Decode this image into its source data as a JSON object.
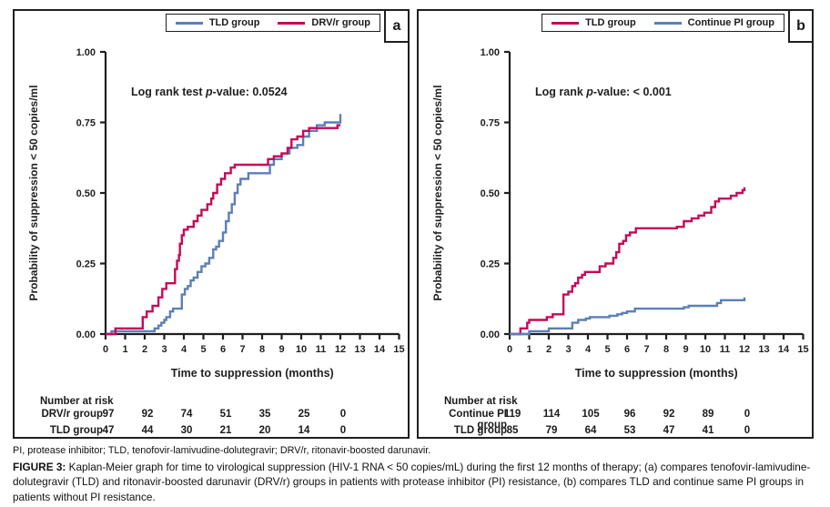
{
  "figure": {
    "footnote": "PI, protease inhibitor; TLD, tenofovir-lamivudine-dolutegravir; DRV/r, ritonavir-boosted darunavir.",
    "caption_label": "FIGURE 3:",
    "caption_text": " Kaplan-Meier graph for time to virological suppression (HIV-1 RNA < 50 copies/mL) during the first 12 months of therapy; (a) compares tenofovir-lamivudine-dolutegravir (TLD) and ritonavir-boosted darunavir (DRV/r) groups in patients with protease inhibitor (PI) resistance, (b) compares TLD and continue same PI groups in patients without PI resistance."
  },
  "colors": {
    "blue": "#5c7fb6",
    "red": "#c40a59",
    "axis": "#1f1f1f"
  },
  "chart_data": [
    {
      "type": "line",
      "subtype": "kaplan-meier-step",
      "panel_label": "a",
      "annotation": "Log rank test p-value: 0.0524",
      "xlabel": "Time to suppression (months)",
      "ylabel": "Probability of suppression < 50 copies/ml",
      "xlim": [
        0,
        15
      ],
      "ylim": [
        0,
        1
      ],
      "x_ticks": [
        0,
        1,
        2,
        3,
        4,
        5,
        6,
        7,
        8,
        9,
        10,
        11,
        12,
        13,
        14,
        15
      ],
      "y_ticks": [
        0,
        0.25,
        0.5,
        0.75,
        1
      ],
      "legend_position": "top-right",
      "series": [
        {
          "name": "TLD group",
          "color": "#5c7fb6",
          "step_points": [
            [
              0,
              0
            ],
            [
              0.3,
              0.01
            ],
            [
              2.5,
              0.02
            ],
            [
              2.7,
              0.03
            ],
            [
              2.85,
              0.04
            ],
            [
              3,
              0.05
            ],
            [
              3.1,
              0.06
            ],
            [
              3.3,
              0.08
            ],
            [
              3.45,
              0.09
            ],
            [
              3.9,
              0.14
            ],
            [
              4.05,
              0.16
            ],
            [
              4.2,
              0.17
            ],
            [
              4.35,
              0.19
            ],
            [
              4.5,
              0.2
            ],
            [
              4.7,
              0.22
            ],
            [
              4.9,
              0.24
            ],
            [
              5.1,
              0.25
            ],
            [
              5.3,
              0.27
            ],
            [
              5.5,
              0.3
            ],
            [
              5.65,
              0.31
            ],
            [
              5.8,
              0.33
            ],
            [
              6,
              0.36
            ],
            [
              6.15,
              0.4
            ],
            [
              6.3,
              0.43
            ],
            [
              6.45,
              0.46
            ],
            [
              6.6,
              0.5
            ],
            [
              6.75,
              0.53
            ],
            [
              6.9,
              0.55
            ],
            [
              7.3,
              0.57
            ],
            [
              8.4,
              0.6
            ],
            [
              8.6,
              0.62
            ],
            [
              9,
              0.64
            ],
            [
              9.4,
              0.66
            ],
            [
              9.8,
              0.67
            ],
            [
              10.1,
              0.7
            ],
            [
              10.4,
              0.72
            ],
            [
              10.8,
              0.74
            ],
            [
              11.2,
              0.75
            ],
            [
              12,
              0.78
            ]
          ]
        },
        {
          "name": "DRV/r group",
          "color": "#c40a59",
          "step_points": [
            [
              0,
              0
            ],
            [
              0.5,
              0.02
            ],
            [
              1.9,
              0.06
            ],
            [
              2.1,
              0.08
            ],
            [
              2.4,
              0.1
            ],
            [
              2.7,
              0.13
            ],
            [
              2.9,
              0.16
            ],
            [
              3.1,
              0.18
            ],
            [
              3.55,
              0.23
            ],
            [
              3.65,
              0.26
            ],
            [
              3.75,
              0.28
            ],
            [
              3.8,
              0.32
            ],
            [
              3.9,
              0.35
            ],
            [
              4,
              0.37
            ],
            [
              4.2,
              0.38
            ],
            [
              4.5,
              0.4
            ],
            [
              4.7,
              0.42
            ],
            [
              4.9,
              0.44
            ],
            [
              5.2,
              0.46
            ],
            [
              5.4,
              0.48
            ],
            [
              5.5,
              0.5
            ],
            [
              5.7,
              0.53
            ],
            [
              5.9,
              0.55
            ],
            [
              6.1,
              0.57
            ],
            [
              6.4,
              0.59
            ],
            [
              6.6,
              0.6
            ],
            [
              8.3,
              0.62
            ],
            [
              8.6,
              0.63
            ],
            [
              9,
              0.64
            ],
            [
              9.3,
              0.66
            ],
            [
              9.5,
              0.69
            ],
            [
              9.8,
              0.7
            ],
            [
              10.1,
              0.72
            ],
            [
              10.4,
              0.73
            ],
            [
              11.85,
              0.74
            ],
            [
              12,
              0.74
            ]
          ]
        }
      ],
      "number_at_risk": {
        "title": "Number at risk",
        "months": [
          0,
          2,
          4,
          6,
          8,
          10,
          12
        ],
        "rows": [
          {
            "label": "DRV/r group",
            "values": [
              97,
              92,
              74,
              51,
              35,
              25,
              0
            ]
          },
          {
            "label": "TLD group",
            "values": [
              47,
              44,
              30,
              21,
              20,
              14,
              0
            ]
          }
        ]
      }
    },
    {
      "type": "line",
      "subtype": "kaplan-meier-step",
      "panel_label": "b",
      "annotation": "Log rank p-value: < 0.001",
      "xlabel": "Time to suppression (months)",
      "ylabel": "Probability of suppression < 50 copies/ml",
      "xlim": [
        0,
        15
      ],
      "ylim": [
        0,
        1
      ],
      "x_ticks": [
        0,
        1,
        2,
        3,
        4,
        5,
        6,
        7,
        8,
        9,
        10,
        11,
        12,
        13,
        14,
        15
      ],
      "y_ticks": [
        0,
        0.25,
        0.5,
        0.75,
        1
      ],
      "legend_position": "top-right",
      "series": [
        {
          "name": "TLD group",
          "color": "#c40a59",
          "step_points": [
            [
              0,
              0
            ],
            [
              0.55,
              0.02
            ],
            [
              0.9,
              0.04
            ],
            [
              1,
              0.05
            ],
            [
              1.9,
              0.06
            ],
            [
              2.2,
              0.07
            ],
            [
              2.75,
              0.14
            ],
            [
              3,
              0.15
            ],
            [
              3.2,
              0.17
            ],
            [
              3.35,
              0.18
            ],
            [
              3.5,
              0.2
            ],
            [
              3.7,
              0.21
            ],
            [
              3.85,
              0.22
            ],
            [
              4.6,
              0.24
            ],
            [
              4.9,
              0.25
            ],
            [
              5.3,
              0.27
            ],
            [
              5.45,
              0.29
            ],
            [
              5.6,
              0.32
            ],
            [
              5.8,
              0.33
            ],
            [
              5.95,
              0.35
            ],
            [
              6.15,
              0.36
            ],
            [
              6.45,
              0.375
            ],
            [
              8.55,
              0.38
            ],
            [
              8.9,
              0.4
            ],
            [
              9.3,
              0.41
            ],
            [
              9.65,
              0.42
            ],
            [
              9.95,
              0.43
            ],
            [
              10.3,
              0.45
            ],
            [
              10.5,
              0.47
            ],
            [
              10.7,
              0.48
            ],
            [
              11.3,
              0.49
            ],
            [
              11.6,
              0.5
            ],
            [
              11.9,
              0.51
            ],
            [
              12,
              0.52
            ]
          ]
        },
        {
          "name": "Continue PI group",
          "color": "#5c7fb6",
          "step_points": [
            [
              0,
              0
            ],
            [
              1,
              0.01
            ],
            [
              2,
              0.02
            ],
            [
              3.2,
              0.04
            ],
            [
              3.5,
              0.05
            ],
            [
              3.9,
              0.055
            ],
            [
              4.1,
              0.06
            ],
            [
              5.1,
              0.065
            ],
            [
              5.5,
              0.07
            ],
            [
              5.75,
              0.075
            ],
            [
              6,
              0.08
            ],
            [
              6.4,
              0.09
            ],
            [
              8.9,
              0.095
            ],
            [
              9.15,
              0.1
            ],
            [
              10.6,
              0.11
            ],
            [
              10.8,
              0.12
            ],
            [
              11.9,
              0.12
            ],
            [
              12,
              0.13
            ]
          ]
        }
      ],
      "number_at_risk": {
        "title": "Number at risk",
        "months": [
          0,
          2,
          4,
          6,
          8,
          10,
          12
        ],
        "rows": [
          {
            "label": "Continue PI group",
            "values": [
              119,
              114,
              105,
              96,
              92,
              89,
              0
            ]
          },
          {
            "label": "TLD group",
            "values": [
              85,
              79,
              64,
              53,
              47,
              41,
              0
            ]
          }
        ]
      }
    }
  ]
}
